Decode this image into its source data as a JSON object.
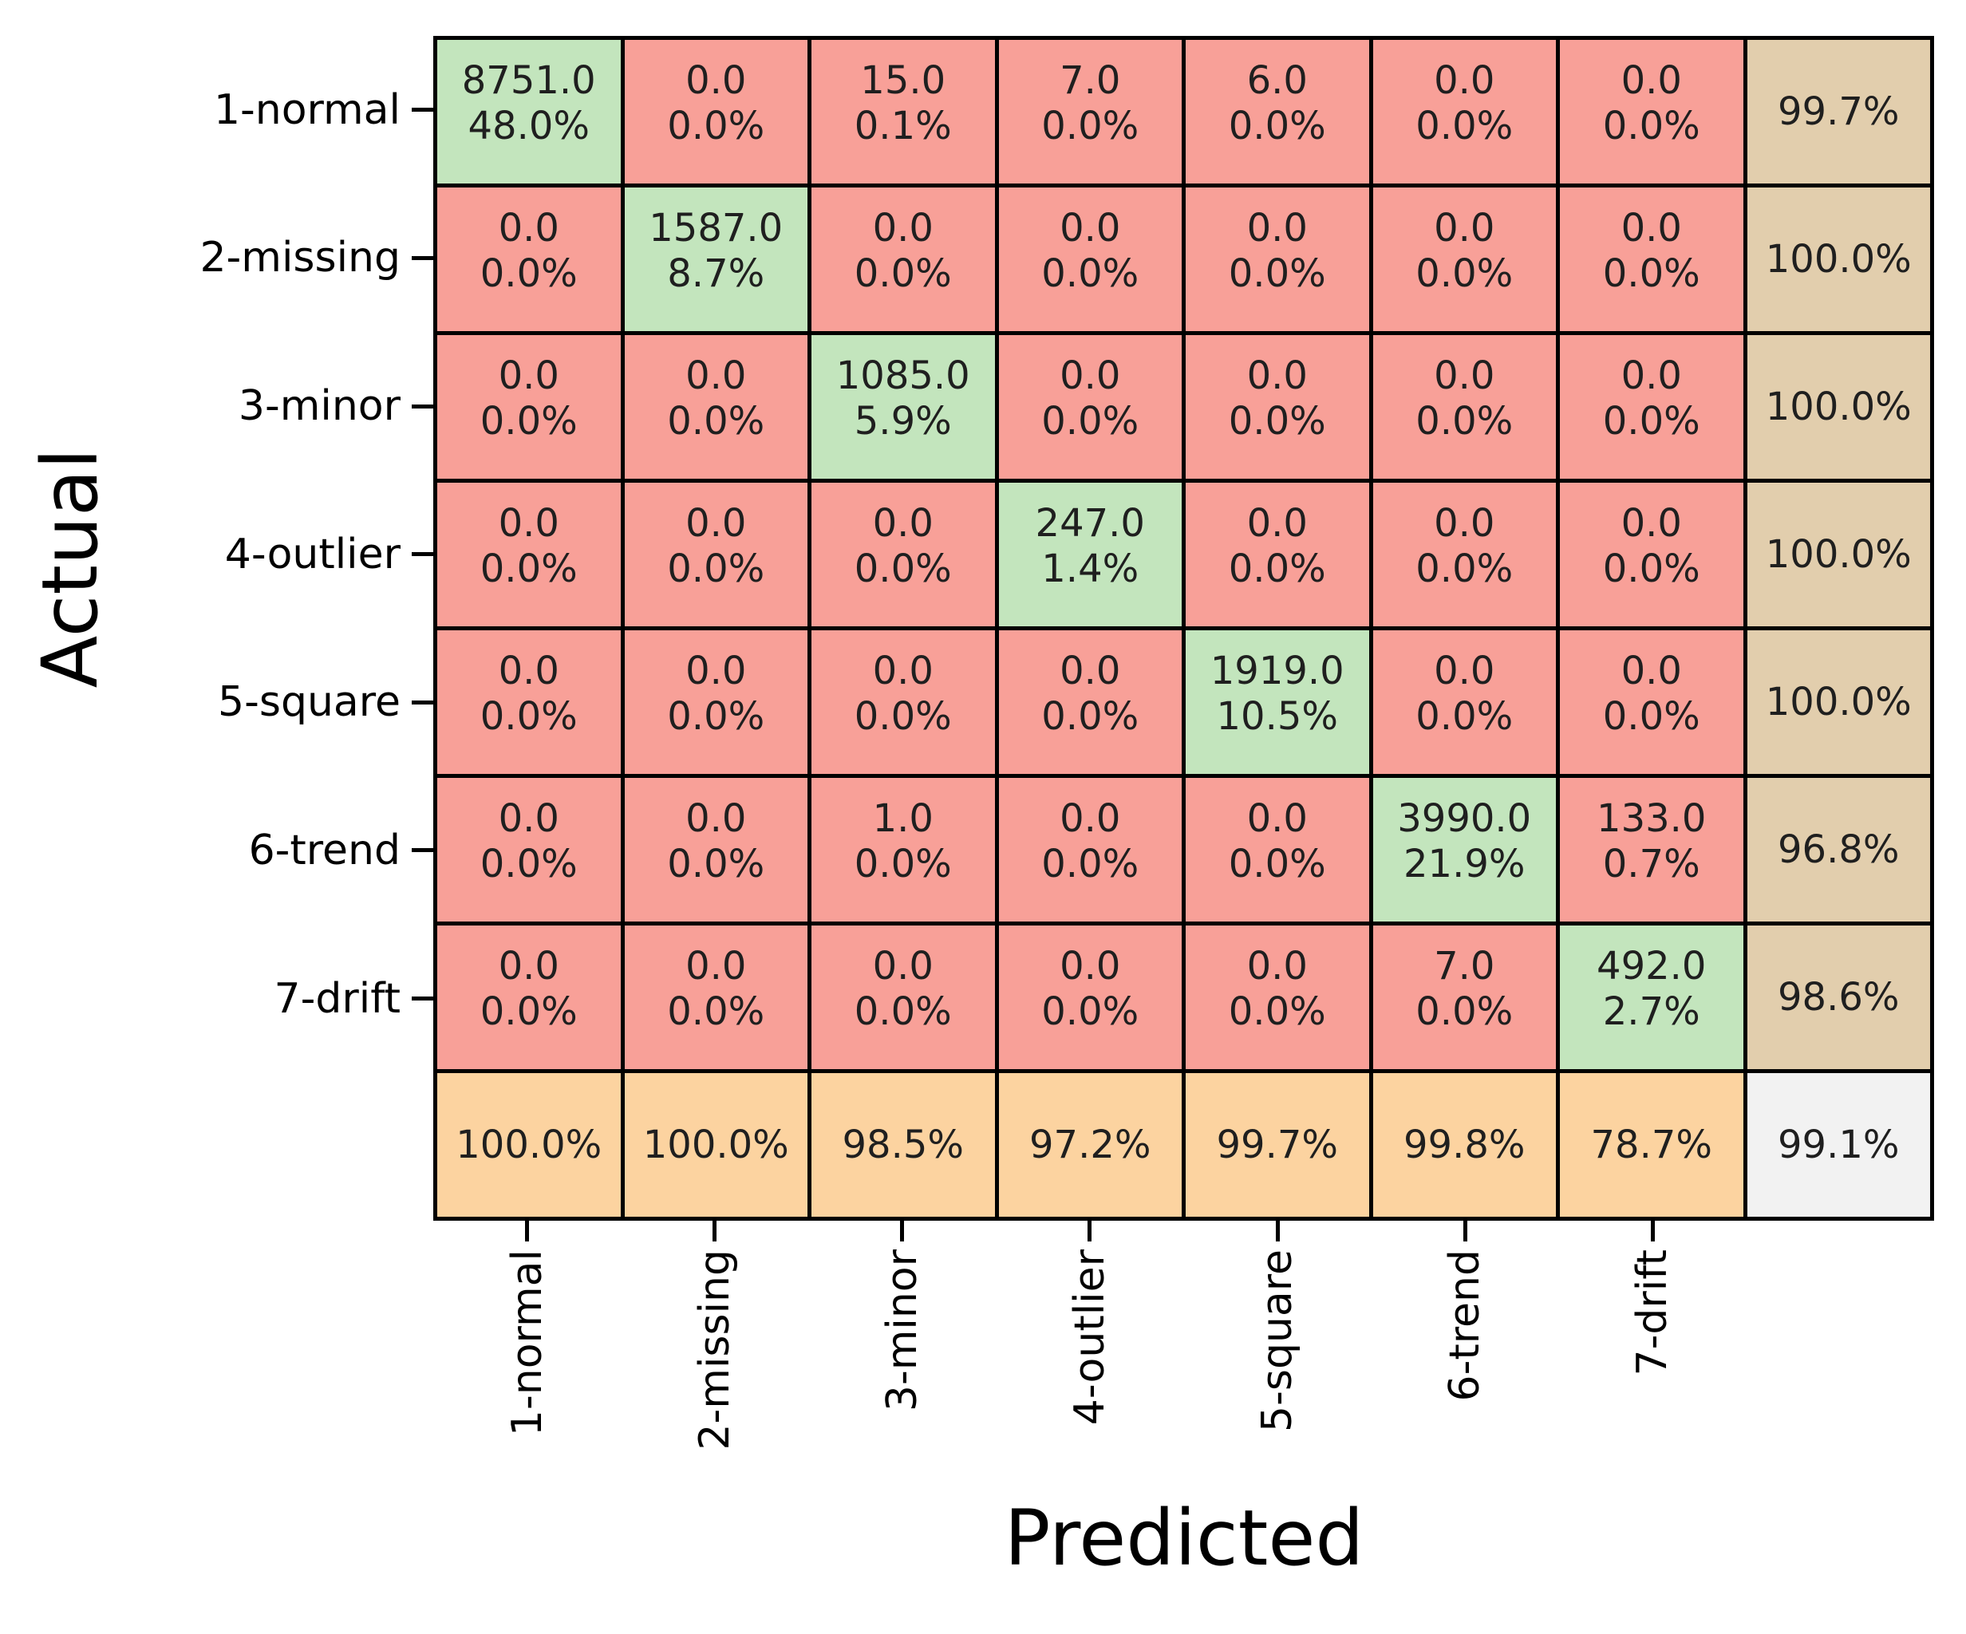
{
  "chart_data": {
    "type": "heatmap",
    "subtype": "confusion_matrix",
    "xlabel": "Predicted",
    "ylabel": "Actual",
    "x_tick_labels": [
      "1-normal",
      "2-missing",
      "3-minor",
      "4-outlier",
      "5-square",
      "6-trend",
      "7-drift"
    ],
    "y_tick_labels": [
      "1-normal",
      "2-missing",
      "3-minor",
      "4-outlier",
      "5-square",
      "6-trend",
      "7-drift"
    ],
    "counts": [
      [
        8751,
        0,
        15,
        7,
        6,
        0,
        0
      ],
      [
        0,
        1587,
        0,
        0,
        0,
        0,
        0
      ],
      [
        0,
        0,
        1085,
        0,
        0,
        0,
        0
      ],
      [
        0,
        0,
        0,
        247,
        0,
        0,
        0
      ],
      [
        0,
        0,
        0,
        0,
        1919,
        0,
        0
      ],
      [
        0,
        0,
        1,
        0,
        0,
        3990,
        133
      ],
      [
        0,
        0,
        0,
        0,
        0,
        7,
        492
      ]
    ],
    "cell_display": [
      [
        [
          "8751.0",
          "48.0%"
        ],
        [
          "0.0",
          "0.0%"
        ],
        [
          "15.0",
          "0.1%"
        ],
        [
          "7.0",
          "0.0%"
        ],
        [
          "6.0",
          "0.0%"
        ],
        [
          "0.0",
          "0.0%"
        ],
        [
          "0.0",
          "0.0%"
        ]
      ],
      [
        [
          "0.0",
          "0.0%"
        ],
        [
          "1587.0",
          "8.7%"
        ],
        [
          "0.0",
          "0.0%"
        ],
        [
          "0.0",
          "0.0%"
        ],
        [
          "0.0",
          "0.0%"
        ],
        [
          "0.0",
          "0.0%"
        ],
        [
          "0.0",
          "0.0%"
        ]
      ],
      [
        [
          "0.0",
          "0.0%"
        ],
        [
          "0.0",
          "0.0%"
        ],
        [
          "1085.0",
          "5.9%"
        ],
        [
          "0.0",
          "0.0%"
        ],
        [
          "0.0",
          "0.0%"
        ],
        [
          "0.0",
          "0.0%"
        ],
        [
          "0.0",
          "0.0%"
        ]
      ],
      [
        [
          "0.0",
          "0.0%"
        ],
        [
          "0.0",
          "0.0%"
        ],
        [
          "0.0",
          "0.0%"
        ],
        [
          "247.0",
          "1.4%"
        ],
        [
          "0.0",
          "0.0%"
        ],
        [
          "0.0",
          "0.0%"
        ],
        [
          "0.0",
          "0.0%"
        ]
      ],
      [
        [
          "0.0",
          "0.0%"
        ],
        [
          "0.0",
          "0.0%"
        ],
        [
          "0.0",
          "0.0%"
        ],
        [
          "0.0",
          "0.0%"
        ],
        [
          "1919.0",
          "10.5%"
        ],
        [
          "0.0",
          "0.0%"
        ],
        [
          "0.0",
          "0.0%"
        ]
      ],
      [
        [
          "0.0",
          "0.0%"
        ],
        [
          "0.0",
          "0.0%"
        ],
        [
          "1.0",
          "0.0%"
        ],
        [
          "0.0",
          "0.0%"
        ],
        [
          "0.0",
          "0.0%"
        ],
        [
          "3990.0",
          "21.9%"
        ],
        [
          "133.0",
          "0.7%"
        ]
      ],
      [
        [
          "0.0",
          "0.0%"
        ],
        [
          "0.0",
          "0.0%"
        ],
        [
          "0.0",
          "0.0%"
        ],
        [
          "0.0",
          "0.0%"
        ],
        [
          "0.0",
          "0.0%"
        ],
        [
          "7.0",
          "0.0%"
        ],
        [
          "492.0",
          "2.7%"
        ]
      ]
    ],
    "row_summary_pct": [
      "99.7%",
      "100.0%",
      "100.0%",
      "100.0%",
      "100.0%",
      "96.8%",
      "98.6%"
    ],
    "col_summary_pct": [
      "100.0%",
      "100.0%",
      "98.5%",
      "97.2%",
      "99.7%",
      "99.8%",
      "78.7%"
    ],
    "overall_pct": "99.1%",
    "colors": {
      "diagonal": "#c3e5bd",
      "off_diagonal": "#f8a098",
      "row_summary": "#e2cead",
      "col_summary": "#fcd3a0",
      "overall": "#f2f2f2",
      "grid_line": "#000000"
    },
    "legend": "off",
    "grid": "on"
  }
}
